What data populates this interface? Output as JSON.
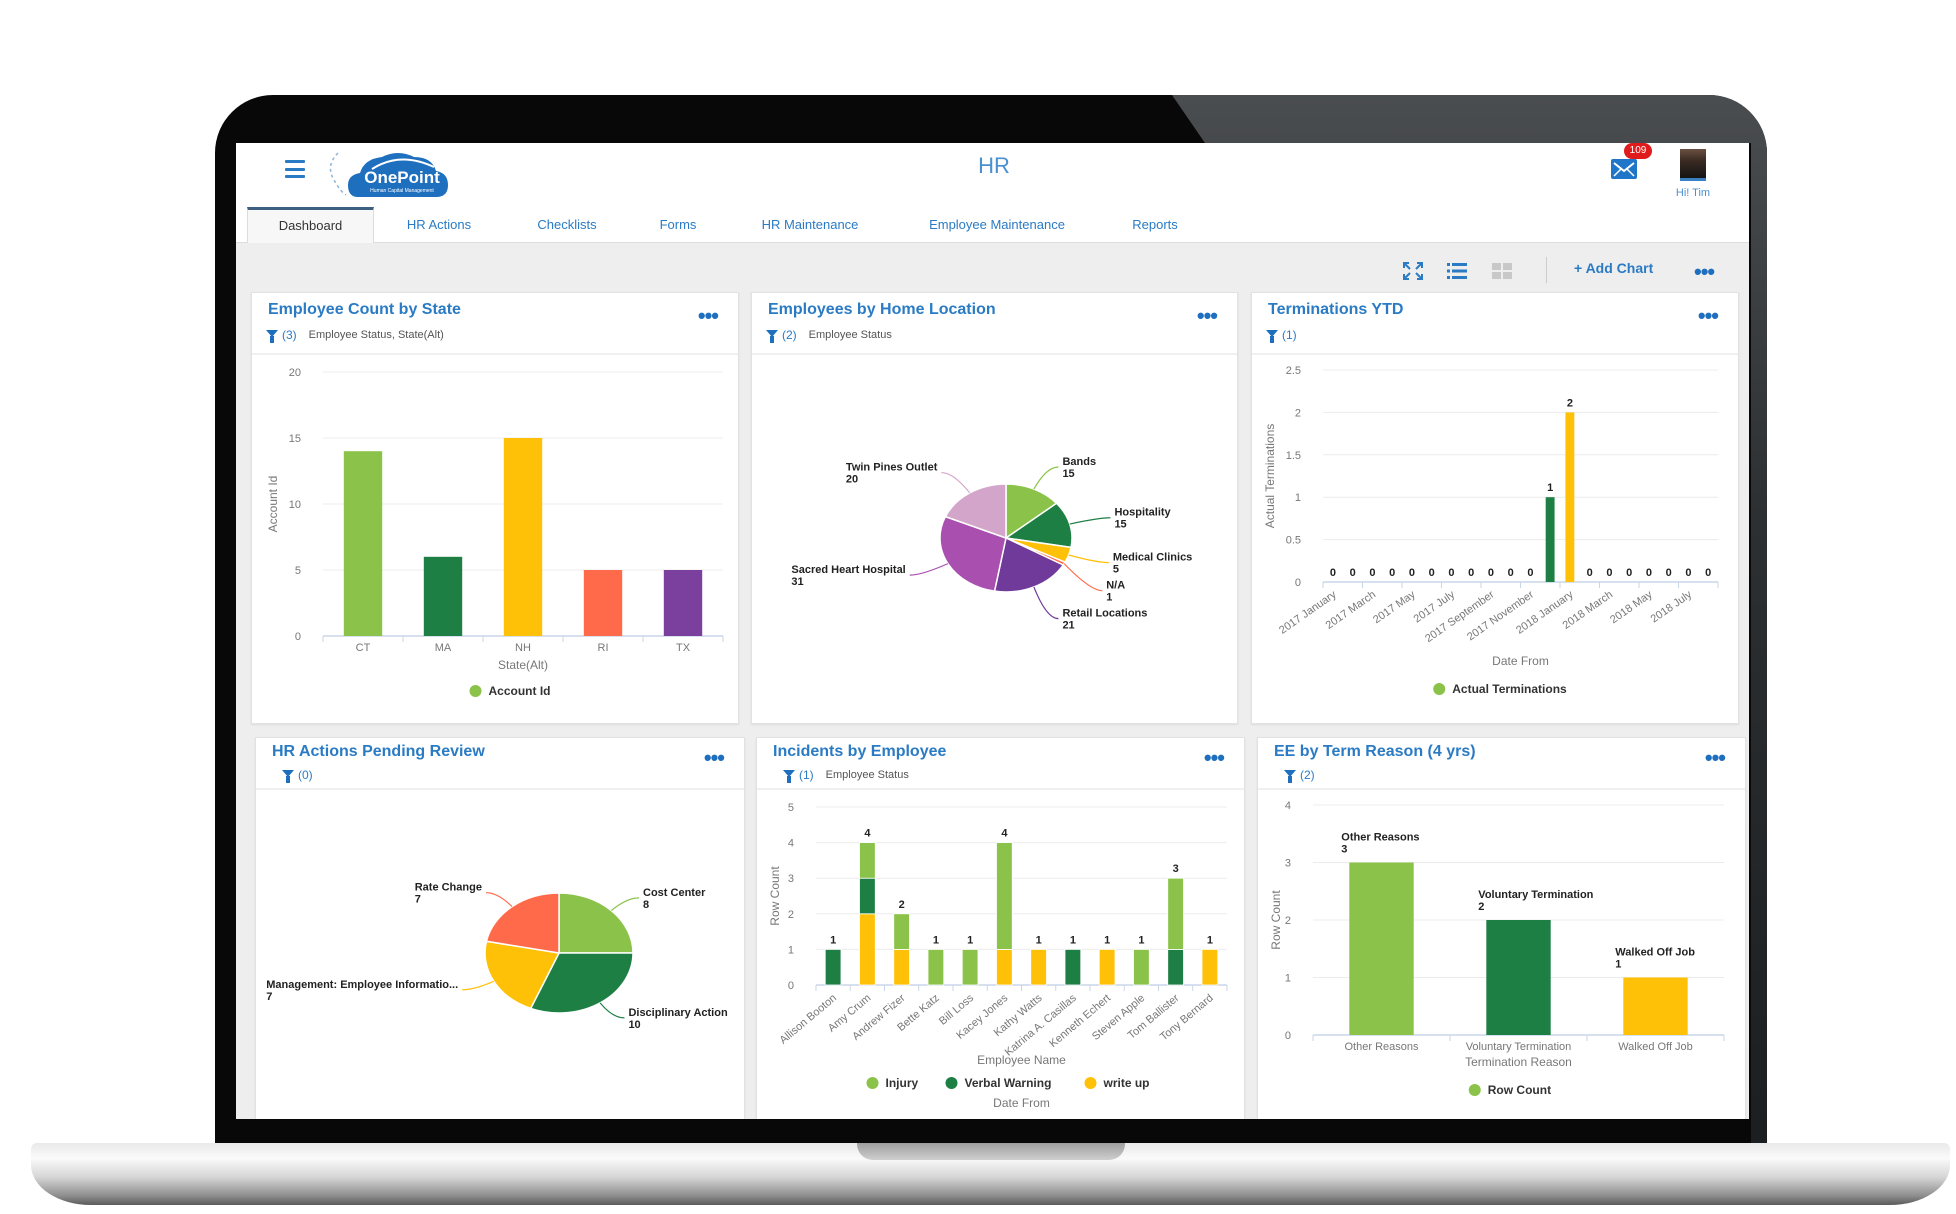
{
  "app": {
    "title": "HR",
    "logo_text": "OnePoint",
    "logo_subtext": "Human Capital Management",
    "greeting": "Hi! Tim",
    "mail_badge": "109"
  },
  "tabs": [
    {
      "label": "Dashboard",
      "active": true
    },
    {
      "label": "HR Actions"
    },
    {
      "label": "Checklists"
    },
    {
      "label": "Forms"
    },
    {
      "label": "HR Maintenance"
    },
    {
      "label": "Employee Maintenance"
    },
    {
      "label": "Reports"
    }
  ],
  "toolbar": {
    "add_chart_icon": "+",
    "add_chart_label": "Add Chart",
    "more": "•••"
  },
  "cards": [
    {
      "title": "Employee Count by State",
      "filter_count": "(3)",
      "filter_text": "Employee Status, State(Alt)",
      "more": "•••"
    },
    {
      "title": "Employees by Home Location",
      "filter_count": "(2)",
      "filter_text": "Employee Status",
      "more": "•••"
    },
    {
      "title": "Terminations YTD",
      "filter_count": "(1)",
      "filter_text": "",
      "more": "•••"
    },
    {
      "title": "HR Actions Pending Review",
      "filter_count": "(0)",
      "filter_text": "",
      "more": "•••"
    },
    {
      "title": "Incidents by Employee",
      "filter_count": "(1)",
      "filter_text": "Employee Status",
      "more": "•••"
    },
    {
      "title": "EE by Term Reason (4 yrs)",
      "filter_count": "(2)",
      "filter_text": "",
      "more": "•••"
    }
  ],
  "chart_data": [
    {
      "type": "bar",
      "title": "Employee Count by State",
      "categories": [
        "CT",
        "MA",
        "NH",
        "RI",
        "TX"
      ],
      "values": [
        14,
        6,
        15,
        5,
        5
      ],
      "colors": [
        "#8bc34a",
        "#1e7f45",
        "#ffc107",
        "#ff6b4a",
        "#7b3f9e"
      ],
      "xlabel": "State(Alt)",
      "ylabel": "Account Id",
      "ylim": [
        0,
        20
      ],
      "yticks": [
        0,
        5,
        10,
        15,
        20
      ],
      "legend": [
        {
          "label": "Account Id",
          "color": "#8bc34a"
        }
      ],
      "grid": true
    },
    {
      "type": "pie",
      "title": "Employees by Home Location",
      "labels": [
        "Bands",
        "Hospitality",
        "Medical Clinics",
        "N/A",
        "Retail Locations",
        "Sacred Heart Hospital",
        "Twin Pines Outlet"
      ],
      "values": [
        15,
        15,
        5,
        1,
        21,
        31,
        20
      ],
      "colors": [
        "#8bc34a",
        "#1e7f45",
        "#ffc107",
        "#ff6b4a",
        "#6f3a99",
        "#a94fb0",
        "#d4a5cb"
      ]
    },
    {
      "type": "bar",
      "title": "Terminations YTD",
      "categories": [
        "2017 January",
        "",
        "2017 March",
        "",
        "2017 May",
        "",
        "2017 July",
        "",
        "2017 September",
        "",
        "2017 November",
        "",
        "2018 January",
        "",
        "2018 March",
        "",
        "2018 May",
        "",
        "2018 July",
        ""
      ],
      "values": [
        0,
        0,
        0,
        0,
        0,
        0,
        0,
        0,
        0,
        0,
        0,
        1,
        2,
        0,
        0,
        0,
        0,
        0,
        0,
        0
      ],
      "colors": [
        "#8bc34a",
        "#8bc34a",
        "#8bc34a",
        "#8bc34a",
        "#8bc34a",
        "#8bc34a",
        "#8bc34a",
        "#8bc34a",
        "#8bc34a",
        "#8bc34a",
        "#8bc34a",
        "#1e7f45",
        "#ffc107",
        "#8bc34a",
        "#8bc34a",
        "#8bc34a",
        "#8bc34a",
        "#8bc34a",
        "#8bc34a",
        "#8bc34a"
      ],
      "data_labels": [
        "0",
        "0",
        "0",
        "0",
        "0",
        "0",
        "0",
        "0",
        "0",
        "0",
        "0",
        "1",
        "2",
        "0",
        "0",
        "0",
        "0",
        "0",
        "0",
        "0"
      ],
      "xlabel": "Date From",
      "ylabel": "Actual Terminations",
      "ylim": [
        0,
        2.5
      ],
      "yticks": [
        0,
        0.5,
        1,
        1.5,
        2,
        2.5
      ],
      "legend": [
        {
          "label": "Actual Terminations",
          "color": "#8bc34a"
        }
      ],
      "grid": true
    },
    {
      "type": "pie",
      "title": "HR Actions Pending Review",
      "labels": [
        "Cost Center",
        "Disciplinary Action",
        "Management: Employee Informatio...",
        "Rate Change"
      ],
      "values": [
        8,
        10,
        7,
        7
      ],
      "colors": [
        "#8bc34a",
        "#1e7f45",
        "#ffc107",
        "#ff6b4a"
      ]
    },
    {
      "type": "bar",
      "stacked": true,
      "title": "Incidents by Employee",
      "categories": [
        "Allison Booton",
        "Amy Crum",
        "Andrew Fizer",
        "Bette Katz",
        "Bill Loss",
        "Kacey Jones",
        "Kathy Watts",
        "Katrina A. Casillas",
        "Kenneth Echert",
        "Steven Apple",
        "Tom Ballister",
        "Tony Bernard"
      ],
      "series": [
        {
          "name": "write up",
          "color": "#ffc107",
          "values": [
            0,
            2,
            1,
            0,
            0,
            1,
            1,
            0,
            1,
            0,
            0,
            1
          ]
        },
        {
          "name": "Verbal Warning",
          "color": "#1e7f45",
          "values": [
            1,
            1,
            0,
            0,
            0,
            0,
            0,
            1,
            0,
            0,
            1,
            0
          ]
        },
        {
          "name": "Injury",
          "color": "#8bc34a",
          "values": [
            0,
            1,
            1,
            1,
            1,
            3,
            0,
            0,
            0,
            1,
            2,
            0
          ]
        }
      ],
      "legend": [
        {
          "label": "Injury",
          "color": "#8bc34a"
        },
        {
          "label": "Verbal Warning",
          "color": "#1e7f45"
        },
        {
          "label": "write up",
          "color": "#ffc107"
        }
      ],
      "data_labels": [
        "1",
        "4",
        "2",
        "1",
        "1",
        "4",
        "1",
        "1",
        "1",
        "1",
        "3",
        "1"
      ],
      "xlabel": "Employee Name",
      "ylabel": "Row Count",
      "ylim": [
        0,
        5
      ],
      "yticks": [
        0,
        1,
        2,
        3,
        4,
        5
      ],
      "overlay_label": "Date From",
      "grid": true
    },
    {
      "type": "bar",
      "title": "EE by Term Reason (4 yrs)",
      "categories": [
        "Other Reasons",
        "Voluntary Termination",
        "Walked Off Job"
      ],
      "values": [
        3,
        2,
        1
      ],
      "colors": [
        "#8bc34a",
        "#1e7f45",
        "#ffc107"
      ],
      "data_labels": [
        "3",
        "2",
        "1"
      ],
      "xlabel": "Termination Reason",
      "ylabel": "Row Count",
      "ylim": [
        0,
        4
      ],
      "yticks": [
        0,
        1,
        2,
        3,
        4
      ],
      "legend": [
        {
          "label": "Row Count",
          "color": "#8bc34a"
        }
      ],
      "grid": true
    }
  ]
}
